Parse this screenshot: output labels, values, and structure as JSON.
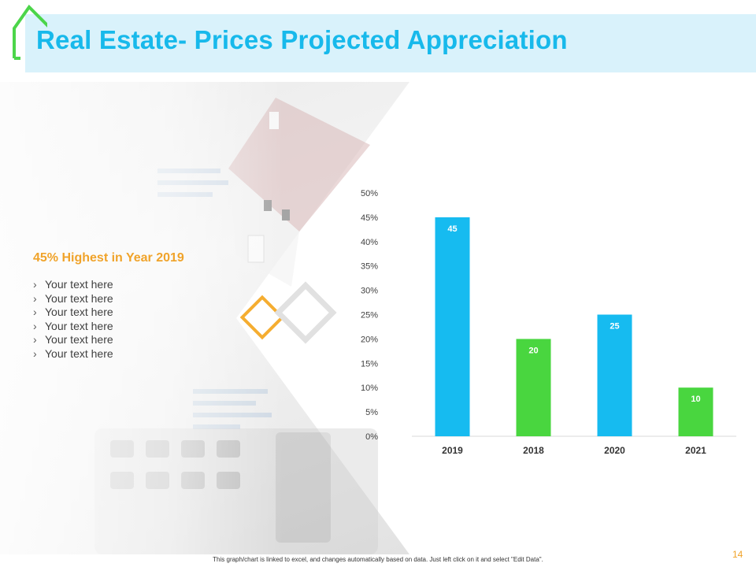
{
  "title": "Real Estate- Prices Projected Appreciation",
  "highlight": "45% Highest in Year 2019",
  "bullets": [
    "Your text here",
    "Your text here",
    "Your text here",
    "Your text here",
    "Your text here",
    "Your text here"
  ],
  "bullet_glyph": "›",
  "colors": {
    "title": "#17b9eb",
    "accent": "#f0a32a",
    "blue_bar": "#16bbf0",
    "green_bar": "#49d63f",
    "house_icon": "#4cd54a"
  },
  "icons": {
    "house": "house-outline-icon"
  },
  "chart_data": {
    "type": "bar",
    "categories": [
      "2019",
      "2018",
      "2020",
      "2021"
    ],
    "values": [
      45,
      20,
      25,
      10
    ],
    "data_labels": [
      "45",
      "20",
      "25",
      "10"
    ],
    "bar_colors": [
      "#16bbf0",
      "#49d63f",
      "#16bbf0",
      "#49d63f"
    ],
    "yticks": [
      "0%",
      "5%",
      "10%",
      "15%",
      "20%",
      "25%",
      "30%",
      "35%",
      "40%",
      "45%",
      "50%"
    ],
    "ylim": [
      0,
      50
    ],
    "title": "",
    "xlabel": "",
    "ylabel": "",
    "grid": false,
    "legend": "none"
  },
  "footer_note": "This graph/chart is linked to excel, and changes automatically based on data. Just left click on it and select \"Edit Data\".",
  "page_number": "14"
}
